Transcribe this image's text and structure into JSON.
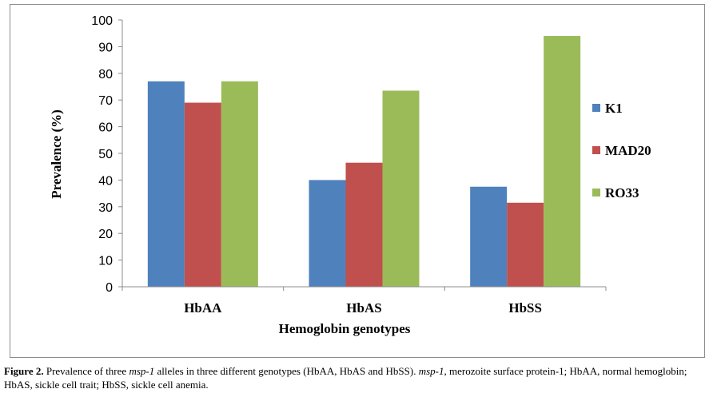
{
  "chart_data": {
    "type": "bar",
    "categories": [
      "HbAA",
      "HbAS",
      "HbSS"
    ],
    "series": [
      {
        "name": "K1",
        "color": "#4f81bd",
        "values": [
          77,
          40,
          37.5
        ]
      },
      {
        "name": "MAD20",
        "color": "#c0504d",
        "values": [
          69,
          46.5,
          31.5
        ]
      },
      {
        "name": "RO33",
        "color": "#9bbb59",
        "values": [
          77,
          73.5,
          94
        ]
      }
    ],
    "xlabel": "Hemoglobin  genotypes",
    "ylabel": "Prevalence (%)",
    "ylim": [
      0,
      100
    ],
    "yticks": [
      "0",
      "10",
      "20",
      "30",
      "40",
      "50",
      "60",
      "70",
      "80",
      "90",
      "100"
    ],
    "grid": false,
    "legend_position": "right"
  },
  "caption": {
    "label": "Figure 2.",
    "text_1": " Prevalence of three ",
    "gene_1": "msp-1",
    "text_2": " alleles in three different genotypes (HbAA, HbAS and HbSS). ",
    "gene_2": "msp-1",
    "text_3": ", merozoite surface protein-1; HbAA, normal hemoglobin; HbAS, sickle cell trait; HbSS, sickle cell anemia."
  }
}
